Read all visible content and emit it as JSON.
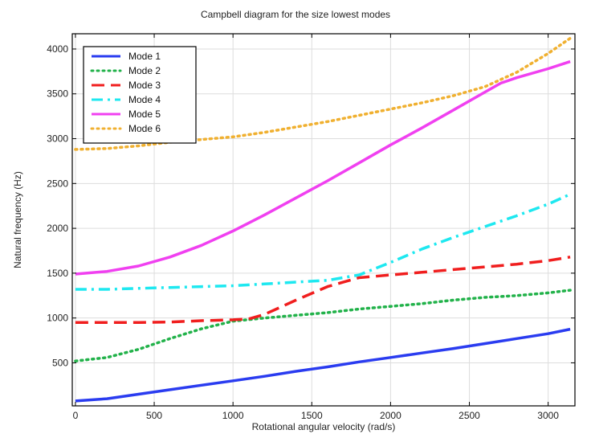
{
  "chart_data": {
    "type": "line",
    "title": "Campbell diagram for the size lowest modes",
    "xlabel": "Rotational angular velocity (rad/s)",
    "ylabel": "Natural frequency (Hz)",
    "xlim": [
      -20,
      3170
    ],
    "ylim": [
      20,
      4170
    ],
    "xticks": [
      0,
      500,
      1000,
      1500,
      2000,
      2500,
      3000
    ],
    "yticks": [
      500,
      1000,
      1500,
      2000,
      2500,
      3000,
      3500,
      4000
    ],
    "xtick_labels": [
      "0",
      "500",
      "1000",
      "1500",
      "2000",
      "2500",
      "3000"
    ],
    "ytick_labels": [
      "500",
      "1000",
      "1500",
      "2000",
      "2500",
      "3000",
      "3500",
      "4000"
    ],
    "grid": true,
    "legend_position": "top-left",
    "series": [
      {
        "name": "Mode 1",
        "color": "#2a3cf0",
        "dash": "solid",
        "x": [
          0,
          200,
          400,
          600,
          800,
          1000,
          1200,
          1400,
          1600,
          1800,
          2000,
          2200,
          2400,
          2600,
          2800,
          3000,
          3140
        ],
        "y": [
          75,
          100,
          150,
          200,
          250,
          300,
          350,
          405,
          455,
          510,
          560,
          610,
          660,
          715,
          770,
          825,
          875
        ]
      },
      {
        "name": "Mode 2",
        "color": "#22b24a",
        "dash": "dotted",
        "x": [
          0,
          200,
          400,
          600,
          800,
          1000,
          1200,
          1400,
          1600,
          1800,
          2000,
          2200,
          2400,
          2600,
          2800,
          3000,
          3140
        ],
        "y": [
          520,
          560,
          650,
          770,
          880,
          965,
          1000,
          1030,
          1060,
          1100,
          1130,
          1160,
          1200,
          1230,
          1250,
          1280,
          1310
        ]
      },
      {
        "name": "Mode 3",
        "color": "#f01e1e",
        "dash": "dashed",
        "x": [
          0,
          200,
          400,
          600,
          800,
          1000,
          1100,
          1200,
          1400,
          1600,
          1800,
          2000,
          2200,
          2400,
          2600,
          2800,
          3000,
          3140
        ],
        "y": [
          950,
          950,
          950,
          955,
          970,
          980,
          990,
          1040,
          1200,
          1350,
          1450,
          1480,
          1510,
          1540,
          1570,
          1600,
          1640,
          1680
        ]
      },
      {
        "name": "Mode 4",
        "color": "#1ee8f0",
        "dash": "dashdot",
        "x": [
          0,
          200,
          400,
          600,
          800,
          1000,
          1200,
          1400,
          1600,
          1800,
          2000,
          2200,
          2400,
          2600,
          2800,
          3000,
          3140
        ],
        "y": [
          1320,
          1320,
          1330,
          1340,
          1350,
          1360,
          1380,
          1400,
          1420,
          1480,
          1620,
          1770,
          1900,
          2020,
          2140,
          2270,
          2380
        ]
      },
      {
        "name": "Mode 5",
        "color": "#f040f0",
        "dash": "solid",
        "x": [
          0,
          200,
          400,
          600,
          800,
          1000,
          1200,
          1400,
          1600,
          1800,
          2000,
          2200,
          2400,
          2600,
          2700,
          2800,
          3000,
          3140
        ],
        "y": [
          1490,
          1520,
          1580,
          1680,
          1810,
          1970,
          2150,
          2340,
          2530,
          2730,
          2930,
          3120,
          3320,
          3520,
          3620,
          3680,
          3780,
          3860
        ]
      },
      {
        "name": "Mode 6",
        "color": "#f0b030",
        "dash": "dotted",
        "x": [
          0,
          200,
          400,
          600,
          800,
          1000,
          1200,
          1400,
          1600,
          1800,
          2000,
          2200,
          2400,
          2600,
          2800,
          3000,
          3140
        ],
        "y": [
          2880,
          2890,
          2920,
          2960,
          2990,
          3020,
          3070,
          3130,
          3190,
          3260,
          3330,
          3400,
          3480,
          3580,
          3740,
          3950,
          4120
        ]
      }
    ]
  }
}
